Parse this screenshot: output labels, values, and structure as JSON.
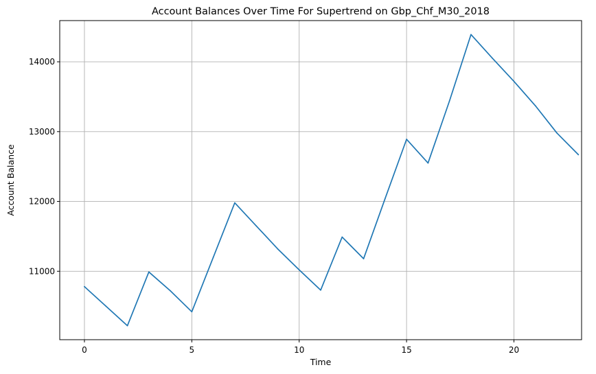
{
  "chart_data": {
    "type": "line",
    "title": "Account Balances Over Time For Supertrend on Gbp_Chf_M30_2018",
    "xlabel": "Time",
    "ylabel": "Account Balance",
    "xlim": [
      -1.15,
      23.15
    ],
    "ylim": [
      10020,
      14590
    ],
    "xticks": [
      0,
      5,
      10,
      15,
      20
    ],
    "xtick_labels": [
      "0",
      "5",
      "10",
      "15",
      "20"
    ],
    "yticks": [
      11000,
      12000,
      13000,
      14000
    ],
    "ytick_labels": [
      "11000",
      "12000",
      "13000",
      "14000"
    ],
    "grid": true,
    "series": [
      {
        "color": "#1f77b4",
        "x": [
          0,
          1,
          2,
          3,
          4,
          5,
          6,
          7,
          8,
          9,
          10,
          11,
          12,
          13,
          14,
          15,
          16,
          17,
          18,
          19,
          20,
          21,
          22,
          23
        ],
        "y": [
          10780,
          10500,
          10220,
          10990,
          10720,
          10420,
          11200,
          11980,
          11650,
          11320,
          11020,
          10730,
          11490,
          11180,
          12040,
          12890,
          12550,
          13440,
          14390,
          14050,
          13720,
          13370,
          12980,
          12670
        ]
      }
    ]
  }
}
